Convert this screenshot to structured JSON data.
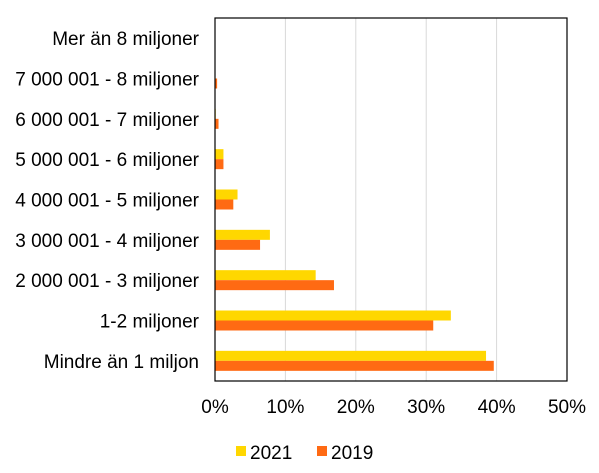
{
  "chart_data": {
    "type": "bar",
    "orientation": "horizontal",
    "categories": [
      "Mer än 8 miljoner",
      "7 000 001 - 8 miljoner",
      "6 000 001 - 7 miljoner",
      "5 000 001 - 6 miljoner",
      "4 000 001 - 5 miljoner",
      "3 000 001 - 4 miljoner",
      "2 000 001 - 3 miljoner",
      "1-2 miljoner",
      "Mindre än 1 miljon"
    ],
    "series": [
      {
        "name": "2021",
        "color": "#FFD700",
        "values": [
          0.0,
          0.0,
          0.1,
          1.2,
          3.2,
          7.8,
          14.3,
          33.5,
          38.5
        ]
      },
      {
        "name": "2019",
        "color": "#FF6A13",
        "values": [
          0.0,
          0.3,
          0.5,
          1.2,
          2.6,
          6.4,
          16.9,
          31.0,
          39.6
        ]
      }
    ],
    "xlim": [
      0,
      50
    ],
    "xticks": [
      "0%",
      "10%",
      "20%",
      "30%",
      "40%",
      "50%"
    ],
    "grid": "vertical",
    "legend": "bottom",
    "title": "",
    "xlabel": "",
    "ylabel": ""
  }
}
